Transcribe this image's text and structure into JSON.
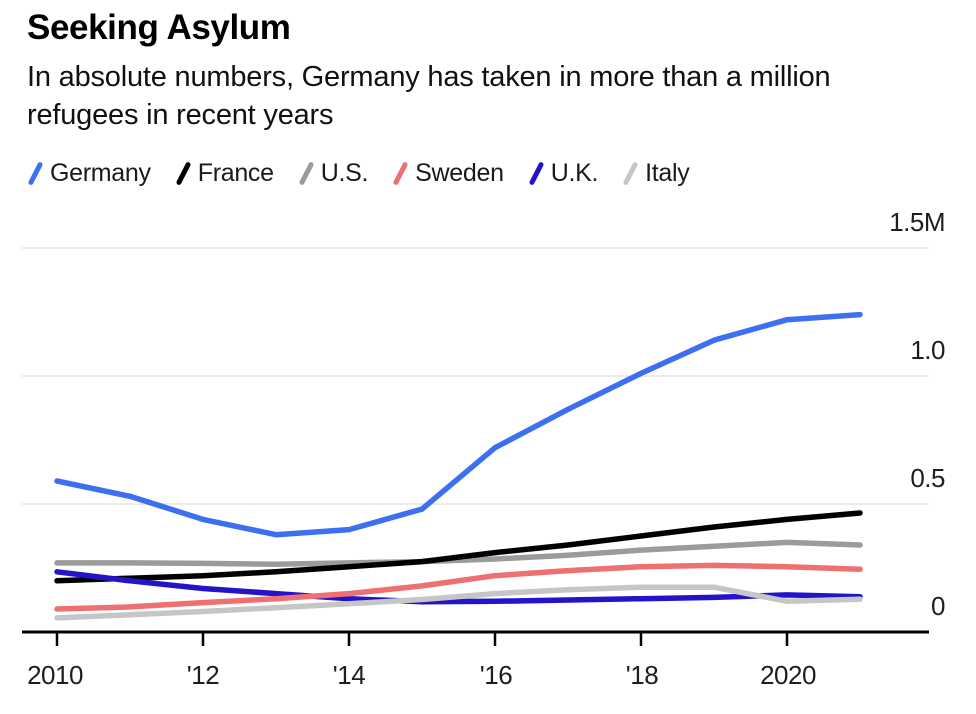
{
  "chart_data": {
    "type": "line",
    "title": "Seeking Asylum",
    "subtitle": "In absolute numbers, Germany has taken in more than a million refugees in recent years",
    "unit": "millions of refugees",
    "legend_position": "top",
    "grid": true,
    "x": [
      2010,
      2011,
      2012,
      2013,
      2014,
      2015,
      2016,
      2017,
      2018,
      2019,
      2020,
      2021
    ],
    "x_axis": {
      "tick_labels": [
        "2010",
        "'12",
        "'14",
        "'16",
        "'18",
        "2020"
      ],
      "tick_years": [
        2010,
        2012,
        2014,
        2016,
        2018,
        2020
      ]
    },
    "y_axis": {
      "range": [
        0,
        1.5
      ],
      "ticks": [
        {
          "label": "1.5M",
          "value": 1.5
        },
        {
          "label": "1.0",
          "value": 1.0
        },
        {
          "label": "0.5",
          "value": 0.5
        },
        {
          "label": "0",
          "value": 0
        }
      ]
    },
    "series": [
      {
        "name": "Germany",
        "color": "#3D70F0",
        "values": [
          0.59,
          0.53,
          0.44,
          0.38,
          0.4,
          0.48,
          0.72,
          0.87,
          1.01,
          1.14,
          1.22,
          1.24
        ]
      },
      {
        "name": "France",
        "color": "#000000",
        "values": [
          0.2,
          0.21,
          0.22,
          0.235,
          0.255,
          0.275,
          0.31,
          0.34,
          0.375,
          0.41,
          0.44,
          0.465
        ]
      },
      {
        "name": "U.S.",
        "color": "#9B9B9B",
        "values": [
          0.27,
          0.27,
          0.268,
          0.265,
          0.27,
          0.275,
          0.285,
          0.3,
          0.32,
          0.335,
          0.35,
          0.34
        ]
      },
      {
        "name": "Sweden",
        "color": "#EE7070",
        "values": [
          0.09,
          0.098,
          0.115,
          0.13,
          0.15,
          0.18,
          0.22,
          0.24,
          0.255,
          0.26,
          0.255,
          0.245
        ]
      },
      {
        "name": "U.K.",
        "color": "#2414C9",
        "values": [
          0.235,
          0.2,
          0.17,
          0.15,
          0.13,
          0.118,
          0.12,
          0.125,
          0.13,
          0.135,
          0.145,
          0.138
        ]
      },
      {
        "name": "Italy",
        "color": "#C6C6C6",
        "values": [
          0.055,
          0.067,
          0.08,
          0.095,
          0.11,
          0.127,
          0.15,
          0.165,
          0.175,
          0.175,
          0.12,
          0.128
        ]
      }
    ],
    "draw_order": [
      "U.S.",
      "France",
      "U.K.",
      "Sweden",
      "Italy",
      "Germany"
    ],
    "colors": {
      "grid": "#ECECEC",
      "axis": "#000000",
      "text": "#1E1E1E"
    }
  }
}
